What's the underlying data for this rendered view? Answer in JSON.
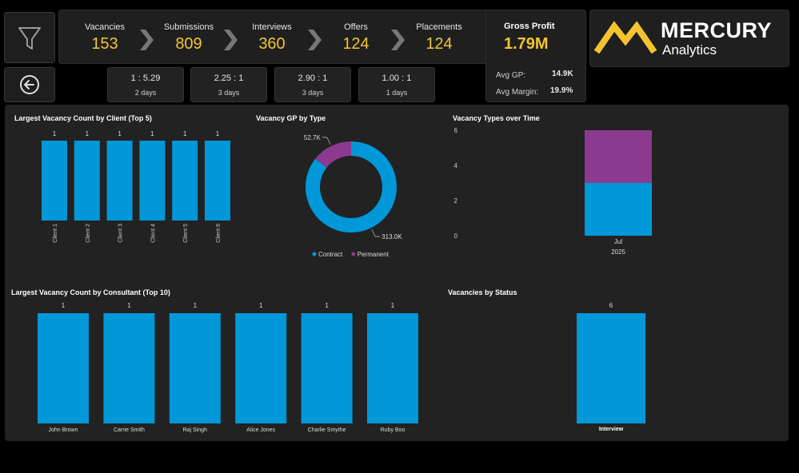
{
  "colors": {
    "bar": "#0098d8",
    "permanent": "#8b3a8f",
    "accent": "#f4c430",
    "bg": "#000000",
    "panel": "#222222"
  },
  "filter_button": {
    "icon": "filter-icon"
  },
  "back_button": {
    "icon": "back-arrow-icon"
  },
  "kpis": [
    {
      "label": "Vacancies",
      "value": "153"
    },
    {
      "label": "Submissions",
      "value": "809"
    },
    {
      "label": "Interviews",
      "value": "360"
    },
    {
      "label": "Offers",
      "value": "124"
    },
    {
      "label": "Placements",
      "value": "124"
    }
  ],
  "ratios": [
    {
      "ratio": "1 : 5.29",
      "days": "2 days"
    },
    {
      "ratio": "2.25 : 1",
      "days": "3 days"
    },
    {
      "ratio": "2.90 : 1",
      "days": "3 days"
    },
    {
      "ratio": "1.00 : 1",
      "days": "1 days"
    }
  ],
  "gross_profit": {
    "title": "Gross Profit",
    "value": "1.79M",
    "avg_gp_label": "Avg GP:",
    "avg_gp_value": "14.9K",
    "avg_margin_label": "Avg Margin:",
    "avg_margin_value": "19.9%"
  },
  "logo": {
    "brand": "MERCURY",
    "sub": "Analytics"
  },
  "chart_data": [
    {
      "type": "bar",
      "title": "Largest Vacancy Count by Client (Top 5)",
      "categories": [
        "Client 1",
        "Client 2",
        "Client 3",
        "Client 4",
        "Client 5",
        "Client 6"
      ],
      "values": [
        1,
        1,
        1,
        1,
        1,
        1
      ]
    },
    {
      "type": "pie",
      "title": "Vacancy GP by Type",
      "slices": [
        {
          "name": "Contract",
          "value": 313.0,
          "label": "313.0K"
        },
        {
          "name": "Permanent",
          "value": 52.7,
          "label": "52.7K"
        }
      ],
      "legend": [
        "Contract",
        "Permanent"
      ],
      "legend_position": "bottom"
    },
    {
      "type": "bar",
      "title": "Vacancy Types over Time",
      "categories": [
        "Jul"
      ],
      "group_label": "2025",
      "ylim": [
        0,
        6
      ],
      "yticks": [
        "0",
        "2",
        "4",
        "6"
      ],
      "series": [
        {
          "values": [
            3
          ]
        },
        {
          "values": [
            3
          ]
        }
      ]
    },
    {
      "type": "bar",
      "title": "Largest Vacancy Count by Consultant (Top 10)",
      "categories": [
        "John Brown",
        "Carrie Smith",
        "Raj Singh",
        "Alice Jones",
        "Charlie Smythe",
        "Ruby Boo"
      ],
      "values": [
        1,
        1,
        1,
        1,
        1,
        1
      ]
    },
    {
      "type": "bar",
      "title": "Vacancies by Status",
      "categories": [
        "Interview"
      ],
      "values": [
        6
      ]
    }
  ]
}
